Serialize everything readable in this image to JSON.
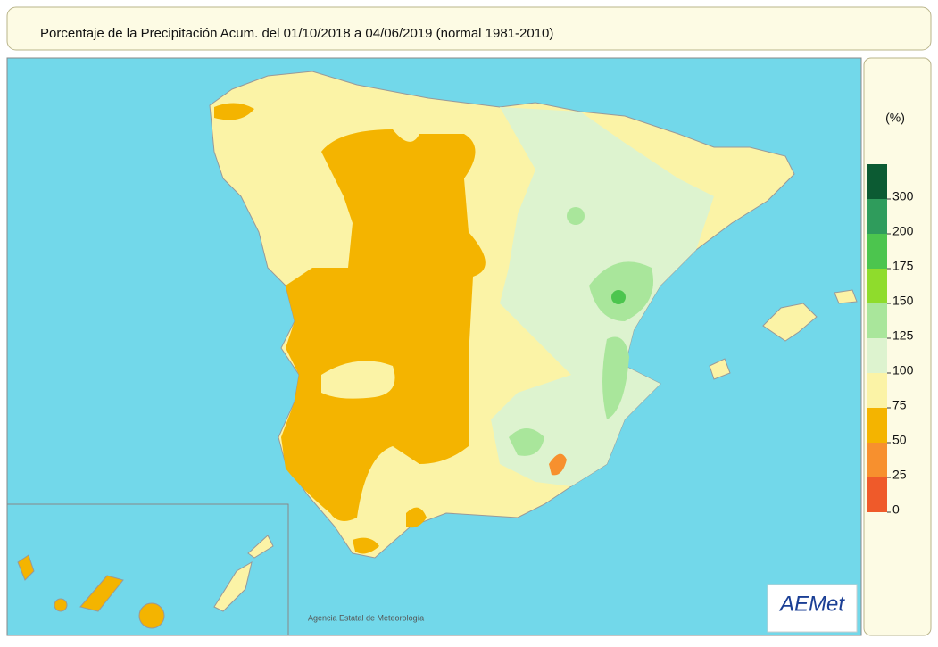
{
  "header": {
    "title": "Porcentaje de la Precipitación Acum. del 01/10/2018 a  04/06/2019  (normal 1981-2010)"
  },
  "legend": {
    "unit": "(%)",
    "ticks": [
      0,
      25,
      50,
      75,
      100,
      125,
      150,
      175,
      200,
      300
    ],
    "colors": [
      "#ef5a2a",
      "#f7902e",
      "#f4b400",
      "#fbf3a6",
      "#ddf3cf",
      "#a9e69b",
      "#8fdc2c",
      "#4cc54e",
      "#2f9c5c",
      "#0c5b33"
    ]
  },
  "footer": {
    "credit": "Agencia Estatal de Meteorología",
    "logo": "AEMet"
  }
}
